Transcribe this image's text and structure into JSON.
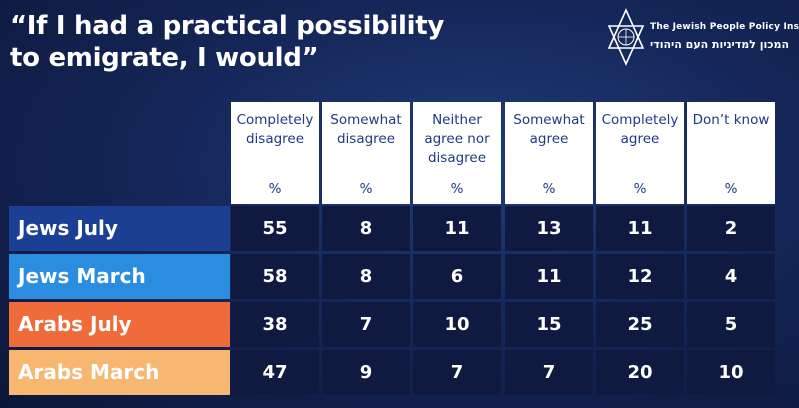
{
  "title": "“If I had a practical possibility to emigrate, I would”",
  "logo": {
    "icon": "star-of-david-logo",
    "name_en": "The Jewish People Policy Institute",
    "name_he": "המכון למדיניות העם היהודי"
  },
  "colors": {
    "background": "#15275a",
    "header_bg": "#ffffff",
    "header_text": "#1e3a86",
    "cell_bg": "#101a40",
    "jews_july": "#1a3f93",
    "jews_march": "#2a8de0",
    "arabs_july": "#ef6b3a",
    "arabs_march": "#f7b770"
  },
  "chart_data": {
    "type": "table",
    "title": "“If I had a practical possibility to emigrate, I would”",
    "columns": [
      {
        "label": "Completely disagree",
        "unit": "%"
      },
      {
        "label": "Somewhat disagree",
        "unit": "%"
      },
      {
        "label": "Neither agree nor disagree",
        "unit": "%"
      },
      {
        "label": "Somewhat agree",
        "unit": "%"
      },
      {
        "label": "Completely agree",
        "unit": "%"
      },
      {
        "label": "Don’t know",
        "unit": "%"
      }
    ],
    "rows": [
      {
        "label": "Jews July",
        "color": "#1a3f93",
        "values": [
          55,
          8,
          11,
          13,
          11,
          2
        ]
      },
      {
        "label": "Jews March",
        "color": "#2a8de0",
        "values": [
          58,
          8,
          6,
          11,
          12,
          4
        ]
      },
      {
        "label": "Arabs July",
        "color": "#ef6b3a",
        "values": [
          38,
          7,
          10,
          15,
          25,
          5
        ]
      },
      {
        "label": "Arabs March",
        "color": "#f7b770",
        "values": [
          47,
          9,
          7,
          7,
          20,
          10
        ]
      }
    ]
  }
}
